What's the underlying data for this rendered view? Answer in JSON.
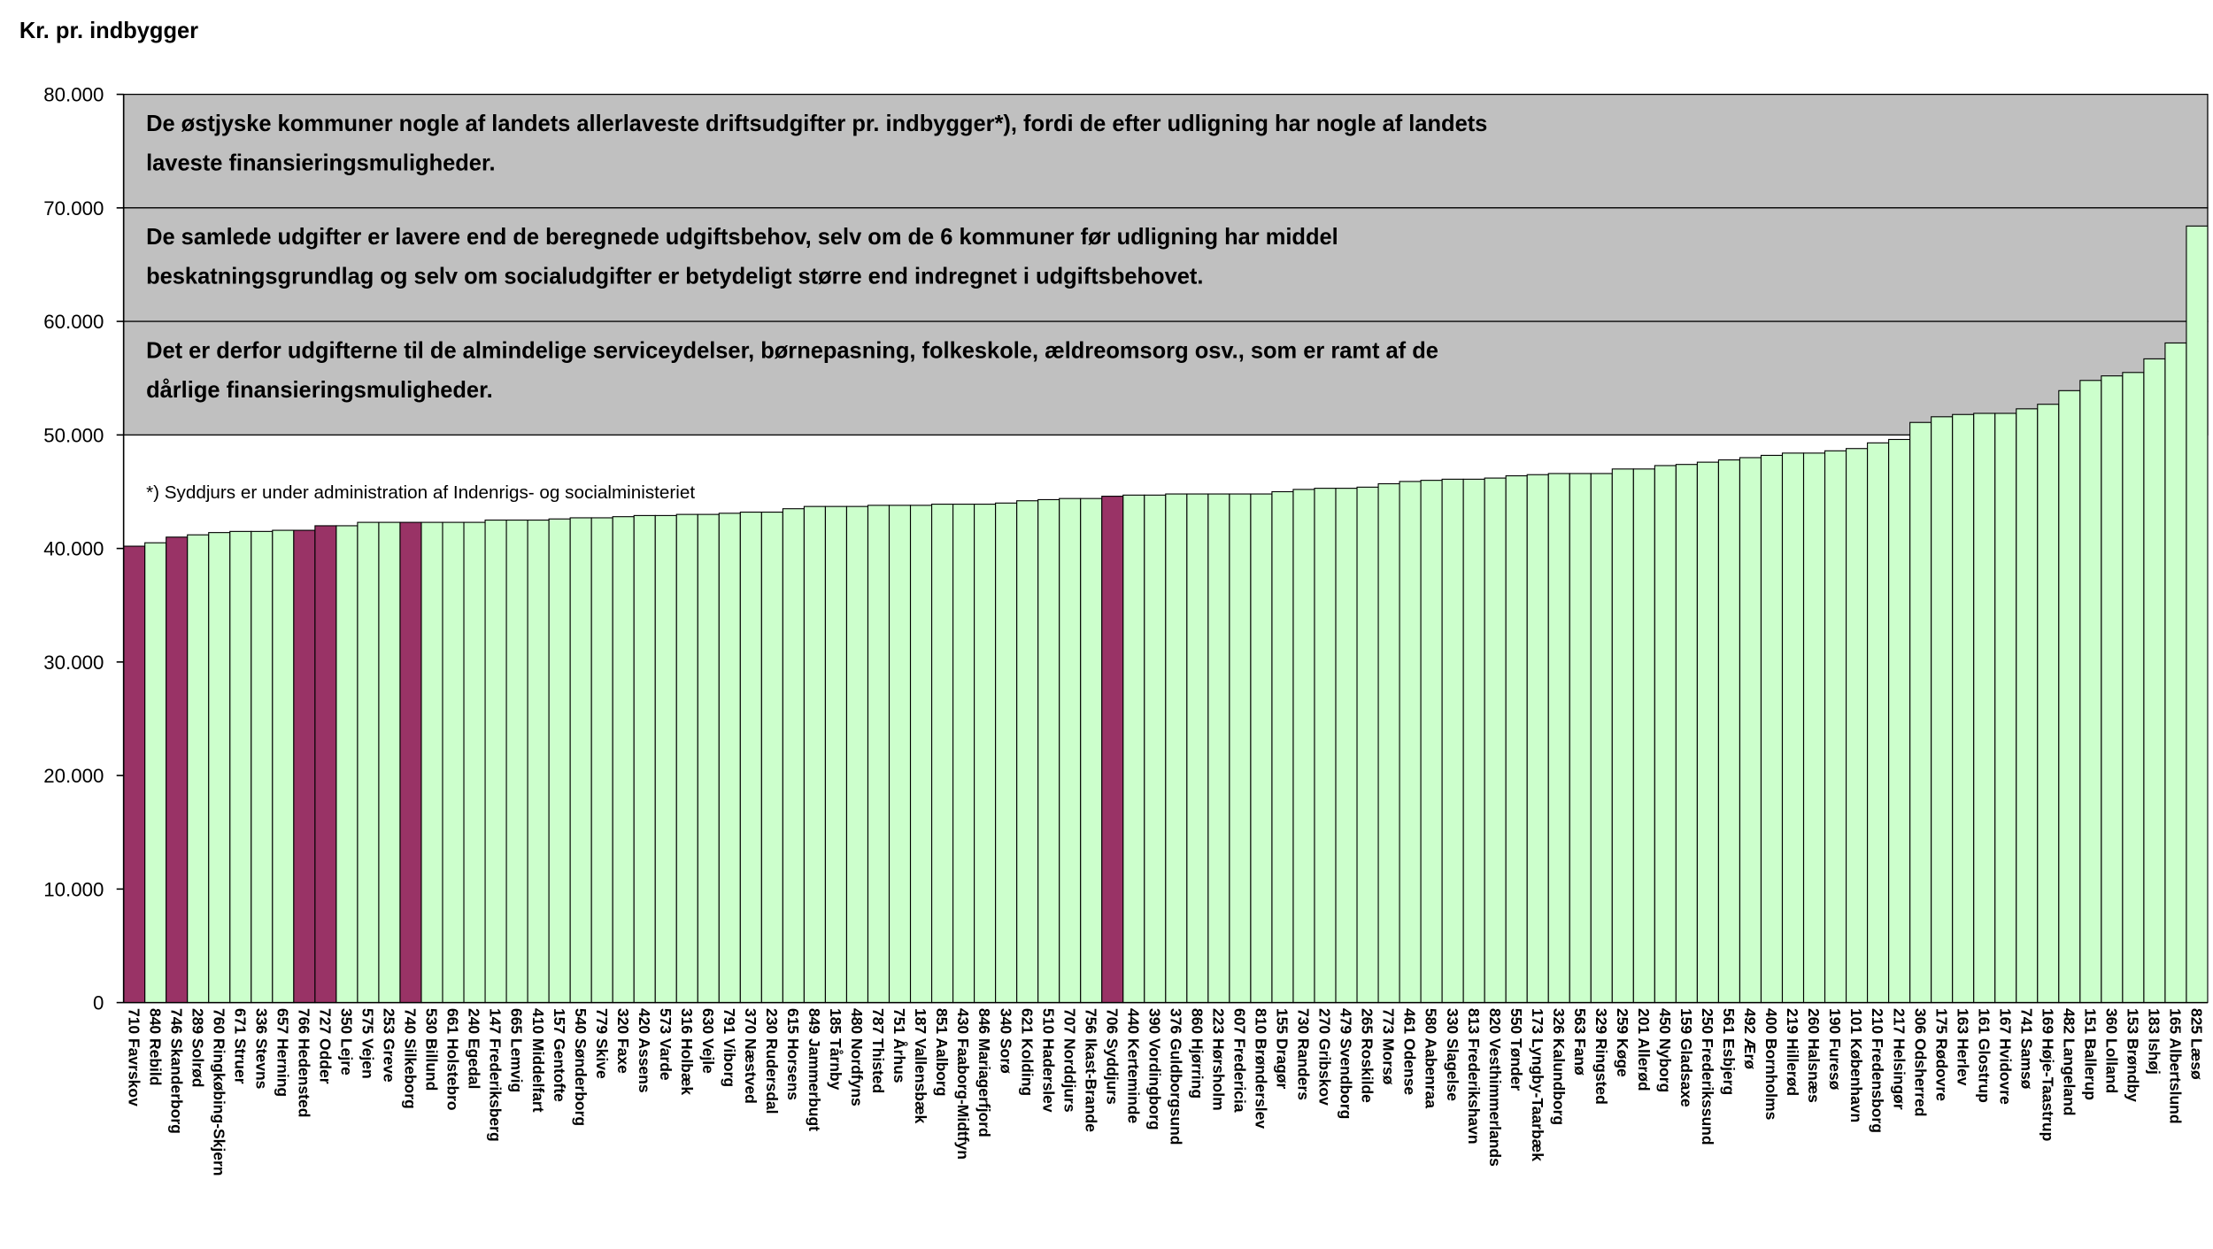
{
  "chart_data": {
    "type": "bar",
    "title": "Kr. pr. indbygger",
    "categories": [
      "710 Favrskov",
      "840 Rebild",
      "746 Skanderborg",
      "289 Solrød",
      "760 Ringkøbing-Skjern",
      "671 Struer",
      "336 Stevns",
      "657 Herning",
      "766 Hedensted",
      "727 Odder",
      "350 Lejre",
      "575 Vejen",
      "253 Greve",
      "740 Silkeborg",
      "530 Billund",
      "661 Holstebro",
      "240 Egedal",
      "147 Frederiksberg",
      "665 Lemvig",
      "410 Middelfart",
      "157 Gentofte",
      "540 Sønderborg",
      "779 Skive",
      "320 Faxe",
      "420 Assens",
      "573 Varde",
      "316 Holbæk",
      "630 Vejle",
      "791 Viborg",
      "370 Næstved",
      "230 Rudersdal",
      "615 Horsens",
      "849 Jammerbugt",
      "185 Tårnby",
      "480 Nordfyns",
      "787 Thisted",
      "751 Århus",
      "187 Vallensbæk",
      "851 Aalborg",
      "430 Faaborg-Midtfyn",
      "846 Mariagerfjord",
      "340 Sorø",
      "621 Kolding",
      "510 Haderslev",
      "707 Norddjurs",
      "756 Ikast-Brande",
      "706 Syddjurs",
      "440 Kerteminde",
      "390 Vordingborg",
      "376 Guldborgsund",
      "860 Hjørring",
      "223 Hørsholm",
      "607 Fredericia",
      "810 Brønderslev",
      "155 Dragør",
      "730 Randers",
      "270 Gribskov",
      "479 Svendborg",
      "265 Roskilde",
      "773 Morsø",
      "461 Odense",
      "580 Aabenraa",
      "330 Slagelse",
      "813 Frederikshavn",
      "820 Vesthimmerlands",
      "550 Tønder",
      "173 Lyngby-Taarbæk",
      "326 Kalundborg",
      "563 Fanø",
      "329 Ringsted",
      "259 Køge",
      "201 Allerød",
      "450 Nyborg",
      "159 Gladsaxe",
      "250 Frederikssund",
      "561 Esbjerg",
      "492 Ærø",
      "400 Bornholms",
      "219 Hillerød",
      "260 Halsnæs",
      "190 Furesø",
      "101 København",
      "210 Fredensborg",
      "217 Helsingør",
      "306 Odsherred",
      "175 Rødovre",
      "163 Herlev",
      "161 Glostrup",
      "167 Hvidovre",
      "741 Samsø",
      "169 Høje-Taastrup",
      "482 Langeland",
      "151 Ballerup",
      "360 Lolland",
      "153 Brøndby",
      "183 Ishøj",
      "165 Albertslund",
      "825 Læsø"
    ],
    "values": [
      40200,
      40500,
      41000,
      41200,
      41400,
      41500,
      41500,
      41600,
      41600,
      42000,
      42000,
      42300,
      42300,
      42300,
      42300,
      42300,
      42300,
      42500,
      42500,
      42500,
      42600,
      42700,
      42700,
      42800,
      42900,
      42900,
      43000,
      43000,
      43100,
      43200,
      43200,
      43500,
      43700,
      43700,
      43700,
      43800,
      43800,
      43800,
      43900,
      43900,
      43900,
      44000,
      44200,
      44300,
      44400,
      44400,
      44600,
      44700,
      44700,
      44800,
      44800,
      44800,
      44800,
      44800,
      45000,
      45200,
      45300,
      45300,
      45400,
      45700,
      45900,
      46000,
      46100,
      46100,
      46200,
      46400,
      46500,
      46600,
      46600,
      46600,
      47000,
      47000,
      47300,
      47400,
      47600,
      47800,
      48000,
      48200,
      48400,
      48400,
      48600,
      48800,
      49300,
      49600,
      51100,
      51600,
      51800,
      51900,
      51900,
      52300,
      52700,
      53900,
      54800,
      55200,
      55500,
      56700,
      58100,
      68400
    ],
    "color": "#ccffcc",
    "highlight_color": "#993366",
    "highlighted": [
      "710 Favrskov",
      "746 Skanderborg",
      "766 Hedensted",
      "727 Odder",
      "740 Silkeborg",
      "706 Syddjurs"
    ],
    "ylim": [
      0,
      80000
    ],
    "yticks": [
      {
        "value": 0,
        "label": "0"
      },
      {
        "value": 10000,
        "label": "10.000"
      },
      {
        "value": 20000,
        "label": "20.000"
      },
      {
        "value": 30000,
        "label": "30.000"
      },
      {
        "value": 40000,
        "label": "40.000"
      },
      {
        "value": 50000,
        "label": "50.000"
      },
      {
        "value": 60000,
        "label": "60.000"
      },
      {
        "value": 70000,
        "label": "70.000"
      },
      {
        "value": 80000,
        "label": "80.000"
      }
    ],
    "annotations": [
      {
        "lines": [
          "De østjyske kommuner nogle af landets allerlaveste driftsudgifter pr. indbygger*), fordi de efter udligning har nogle af landets",
          "laveste finansieringsmuligheder."
        ],
        "y_range": [
          70000,
          80000
        ]
      },
      {
        "lines": [
          "De samlede udgifter er lavere end de beregnede udgiftsbehov, selv om de 6 kommuner før udligning har middel",
          "beskatningsgrundlag og selv om socialudgifter er betydeligt større end indregnet i udgiftsbehovet."
        ],
        "y_range": [
          60000,
          70000
        ]
      },
      {
        "lines": [
          "Det er derfor udgifterne til de almindelige serviceydelser, børnepasning, folkeskole, ældreomsorg osv., som er ramt af de",
          "dårlige finansieringsmuligheder."
        ],
        "y_range": [
          50000,
          60000
        ]
      }
    ],
    "footnote": "*) Syddjurs er under administration af Indenrigs- og socialministeriet"
  }
}
